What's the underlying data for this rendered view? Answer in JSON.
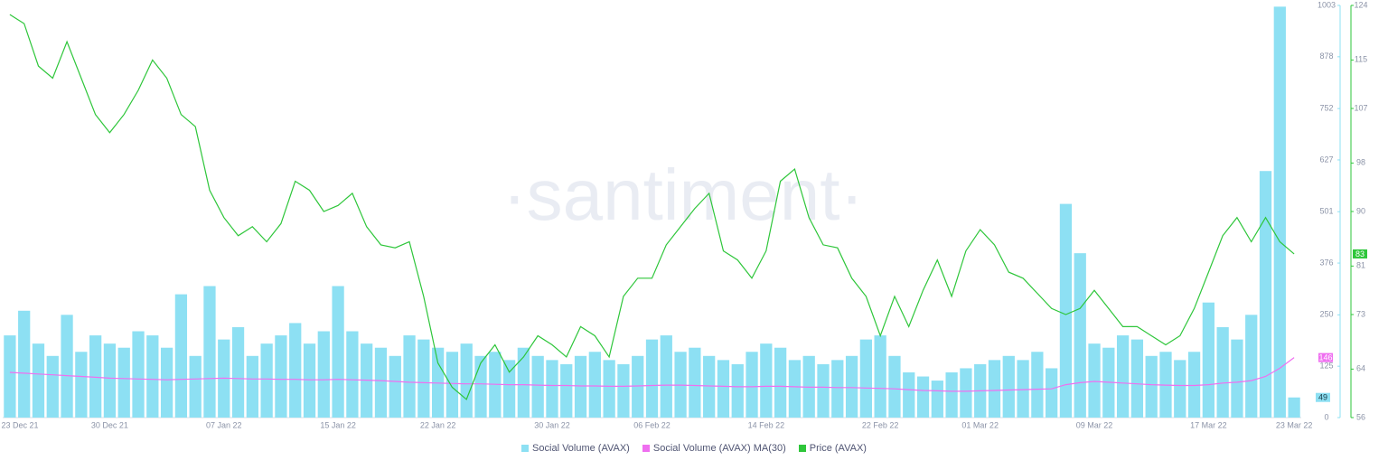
{
  "chart_data": {
    "type": "bar-line",
    "watermark": "·santiment·",
    "categories": [
      "23 Dec 21",
      null,
      null,
      null,
      null,
      null,
      null,
      "30 Dec 21",
      null,
      null,
      null,
      null,
      null,
      null,
      null,
      "07 Jan 22",
      null,
      null,
      null,
      null,
      null,
      null,
      null,
      "15 Jan 22",
      null,
      null,
      null,
      null,
      null,
      null,
      "22 Jan 22",
      null,
      null,
      null,
      null,
      null,
      null,
      null,
      "30 Jan 22",
      null,
      null,
      null,
      null,
      null,
      null,
      "06 Feb 22",
      null,
      null,
      null,
      null,
      null,
      null,
      null,
      "14 Feb 22",
      null,
      null,
      null,
      null,
      null,
      null,
      null,
      "22 Feb 22",
      null,
      null,
      null,
      null,
      null,
      null,
      "01 Mar 22",
      null,
      null,
      null,
      null,
      null,
      null,
      null,
      "09 Mar 22",
      null,
      null,
      null,
      null,
      null,
      null,
      null,
      "17 Mar 22",
      null,
      null,
      null,
      null,
      null,
      "23 Mar 22"
    ],
    "series": [
      {
        "name": "Social Volume (AVAX)",
        "kind": "bar",
        "color": "#8de0f3",
        "values": [
          200,
          260,
          180,
          150,
          250,
          160,
          200,
          180,
          170,
          210,
          200,
          170,
          300,
          150,
          320,
          190,
          220,
          150,
          180,
          200,
          230,
          180,
          210,
          320,
          210,
          180,
          170,
          150,
          200,
          190,
          170,
          160,
          180,
          150,
          160,
          140,
          170,
          150,
          140,
          130,
          150,
          160,
          140,
          130,
          150,
          190,
          200,
          160,
          170,
          150,
          140,
          130,
          160,
          180,
          170,
          140,
          150,
          130,
          140,
          150,
          190,
          200,
          150,
          110,
          100,
          90,
          110,
          120,
          130,
          140,
          150,
          140,
          160,
          120,
          520,
          400,
          180,
          170,
          200,
          190,
          150,
          160,
          140,
          160,
          280,
          220,
          190,
          250,
          600,
          1000,
          49
        ]
      },
      {
        "name": "Social Volume (AVAX) MA(30)",
        "kind": "line",
        "color": "#ef6ff0",
        "values": [
          110,
          108,
          106,
          104,
          102,
          100,
          98,
          96,
          95,
          94,
          93,
          92,
          93,
          94,
          95,
          96,
          95,
          94,
          94,
          93,
          93,
          92,
          92,
          93,
          92,
          91,
          90,
          88,
          86,
          85,
          84,
          83,
          82,
          82,
          81,
          80,
          80,
          79,
          78,
          78,
          77,
          77,
          76,
          76,
          77,
          78,
          79,
          79,
          78,
          77,
          76,
          75,
          75,
          76,
          76,
          75,
          74,
          74,
          73,
          73,
          72,
          71,
          70,
          68,
          66,
          65,
          64,
          64,
          65,
          66,
          67,
          68,
          69,
          70,
          80,
          85,
          88,
          86,
          84,
          82,
          80,
          79,
          78,
          78,
          80,
          84,
          86,
          90,
          100,
          120,
          146
        ]
      },
      {
        "name": "Price (AVAX)",
        "kind": "line",
        "axis": "y2",
        "color": "#2ec63a",
        "values": [
          122.5,
          121,
          114,
          112,
          118,
          112,
          106,
          103,
          106,
          110,
          115,
          112,
          106,
          104,
          93.5,
          89,
          86,
          87.5,
          85,
          88,
          95,
          93.5,
          90,
          91,
          93,
          87.5,
          84.5,
          84,
          85,
          76,
          65,
          61,
          59,
          65,
          68,
          63.5,
          66,
          69.5,
          68,
          66,
          71,
          69.5,
          66,
          76,
          79,
          79,
          84.5,
          87.5,
          90.5,
          93,
          83.5,
          82,
          79,
          83.5,
          95,
          97,
          89,
          84.5,
          84,
          79,
          76,
          69.5,
          76,
          71,
          77,
          82,
          76,
          83.5,
          87,
          84.5,
          80,
          79,
          76.5,
          74,
          73,
          74,
          77,
          74,
          71,
          71,
          69.5,
          68,
          69.5,
          74,
          80,
          86,
          89,
          85,
          89,
          85,
          83
        ]
      }
    ],
    "ylim": [
      0,
      1003
    ],
    "yticks": [
      0,
      125,
      250,
      376,
      501,
      627,
      752,
      878,
      1003
    ],
    "y2lim": [
      56,
      124
    ],
    "y2ticks": [
      56,
      64,
      73,
      81,
      90,
      98,
      107,
      115,
      124
    ]
  }
}
